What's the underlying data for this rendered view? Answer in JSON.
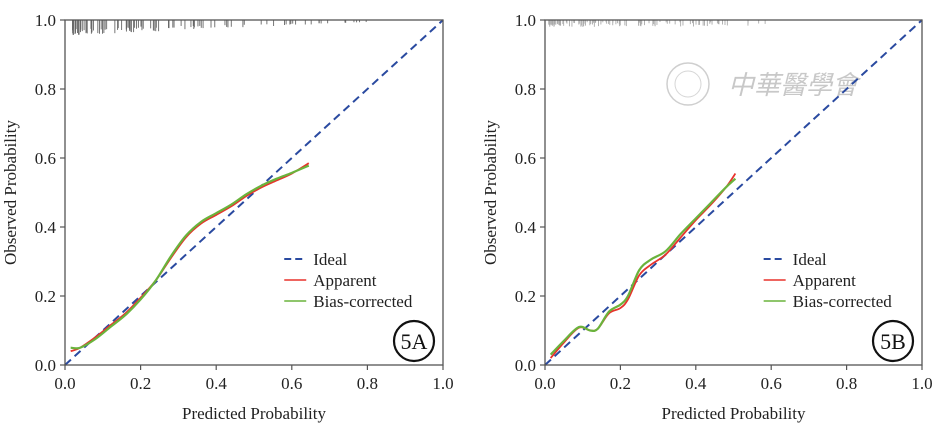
{
  "chart_data": [
    {
      "type": "line",
      "panel_label": "5A",
      "xlabel": "Predicted Probability",
      "ylabel": "Observed Probability",
      "xlim": [
        0.0,
        1.0
      ],
      "ylim": [
        0.0,
        1.0
      ],
      "xticks": [
        "0.0",
        "0.2",
        "0.4",
        "0.6",
        "0.8",
        "1.0"
      ],
      "yticks": [
        "0.0",
        "0.2",
        "0.4",
        "0.6",
        "0.8",
        "1.0"
      ],
      "grid": false,
      "legend_position": "bottom-right",
      "legend": [
        "Ideal",
        "Apparent",
        "Bias-corrected"
      ],
      "series": [
        {
          "name": "Ideal",
          "style": "dashed",
          "color": "#2a4aa0",
          "x": [
            0.0,
            1.0
          ],
          "y": [
            0.0,
            1.0
          ]
        },
        {
          "name": "Apparent",
          "style": "solid",
          "color": "#e8322c",
          "x": [
            0.015,
            0.04,
            0.08,
            0.12,
            0.16,
            0.2,
            0.24,
            0.28,
            0.32,
            0.36,
            0.4,
            0.44,
            0.48,
            0.52,
            0.56,
            0.6,
            0.645
          ],
          "y": [
            0.04,
            0.05,
            0.08,
            0.115,
            0.15,
            0.195,
            0.245,
            0.31,
            0.37,
            0.41,
            0.435,
            0.46,
            0.49,
            0.515,
            0.535,
            0.555,
            0.585
          ]
        },
        {
          "name": "Bias-corrected",
          "style": "solid",
          "color": "#6ab33c",
          "x": [
            0.015,
            0.04,
            0.08,
            0.12,
            0.16,
            0.2,
            0.24,
            0.28,
            0.32,
            0.36,
            0.4,
            0.44,
            0.48,
            0.52,
            0.56,
            0.6,
            0.645
          ],
          "y": [
            0.05,
            0.05,
            0.075,
            0.11,
            0.145,
            0.19,
            0.245,
            0.315,
            0.375,
            0.415,
            0.44,
            0.465,
            0.495,
            0.52,
            0.54,
            0.557,
            0.578
          ]
        }
      ],
      "rug": {
        "position": "top",
        "color": "#666666",
        "x_range": [
          0.02,
          0.8
        ]
      }
    },
    {
      "type": "line",
      "panel_label": "5B",
      "xlabel": "Predicted Probability",
      "ylabel": "Observed Probability",
      "xlim": [
        0.0,
        1.0
      ],
      "ylim": [
        0.0,
        1.0
      ],
      "xticks": [
        "0.0",
        "0.2",
        "0.4",
        "0.6",
        "0.8",
        "1.0"
      ],
      "yticks": [
        "0.0",
        "0.2",
        "0.4",
        "0.6",
        "0.8",
        "1.0"
      ],
      "grid": false,
      "legend_position": "bottom-right",
      "legend": [
        "Ideal",
        "Apparent",
        "Bias-corrected"
      ],
      "series": [
        {
          "name": "Ideal",
          "style": "dashed",
          "color": "#2a4aa0",
          "x": [
            0.0,
            1.0
          ],
          "y": [
            0.0,
            1.0
          ]
        },
        {
          "name": "Apparent",
          "style": "solid",
          "color": "#e8322c",
          "x": [
            0.015,
            0.05,
            0.09,
            0.12,
            0.14,
            0.17,
            0.2,
            0.22,
            0.25,
            0.28,
            0.32,
            0.36,
            0.4,
            0.44,
            0.48,
            0.505
          ],
          "y": [
            0.02,
            0.065,
            0.108,
            0.1,
            0.105,
            0.15,
            0.165,
            0.19,
            0.26,
            0.29,
            0.32,
            0.37,
            0.42,
            0.465,
            0.515,
            0.555
          ]
        },
        {
          "name": "Bias-corrected",
          "style": "solid",
          "color": "#6ab33c",
          "x": [
            0.015,
            0.05,
            0.09,
            0.12,
            0.14,
            0.17,
            0.2,
            0.22,
            0.25,
            0.28,
            0.32,
            0.36,
            0.4,
            0.44,
            0.48,
            0.505
          ],
          "y": [
            0.03,
            0.07,
            0.11,
            0.1,
            0.105,
            0.155,
            0.175,
            0.2,
            0.275,
            0.305,
            0.33,
            0.38,
            0.425,
            0.47,
            0.515,
            0.54
          ]
        }
      ],
      "rug": {
        "position": "top",
        "color": "#aaaaaa",
        "x_range": [
          0.01,
          0.62
        ]
      }
    }
  ],
  "watermark": {
    "text": "中華醫學會"
  }
}
